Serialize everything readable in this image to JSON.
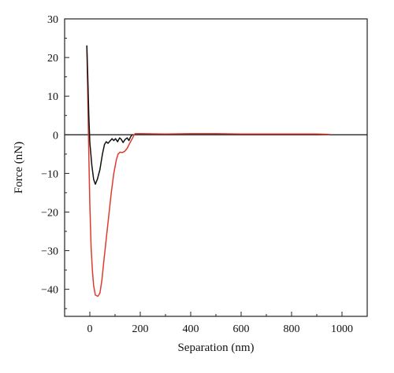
{
  "chart_data": {
    "type": "line",
    "title": "",
    "xlabel": "Separation (nm)",
    "ylabel": "Force (nN)",
    "xlim": [
      -100,
      1100
    ],
    "ylim": [
      -47,
      30
    ],
    "xticks": [
      0,
      200,
      400,
      600,
      800,
      1000
    ],
    "yticks": [
      30,
      20,
      10,
      0,
      -10,
      -20,
      -30,
      -40
    ],
    "xtick_labels": [
      "0",
      "200",
      "400",
      "600",
      "800",
      "1000"
    ],
    "ytick_labels": [
      "30",
      "20",
      "10",
      "0",
      "−10",
      "−20",
      "−30",
      "−40"
    ],
    "grid": false,
    "legend": false,
    "reference_line_y": 0,
    "series": [
      {
        "color": "#e03a2e",
        "points": [
          [
            -12,
            23
          ],
          [
            -8,
            10
          ],
          [
            -4,
            -5
          ],
          [
            0,
            -18
          ],
          [
            5,
            -29
          ],
          [
            10,
            -35
          ],
          [
            15,
            -39
          ],
          [
            22,
            -41.5
          ],
          [
            32,
            -41.8
          ],
          [
            40,
            -41
          ],
          [
            48,
            -37.5
          ],
          [
            55,
            -33
          ],
          [
            65,
            -27
          ],
          [
            75,
            -21
          ],
          [
            85,
            -15
          ],
          [
            95,
            -10
          ],
          [
            105,
            -6.5
          ],
          [
            112,
            -5
          ],
          [
            120,
            -4.5
          ],
          [
            128,
            -4.6
          ],
          [
            138,
            -4.3
          ],
          [
            148,
            -3.5
          ],
          [
            158,
            -2.2
          ],
          [
            168,
            -1
          ],
          [
            176,
            0
          ],
          [
            180,
            0.3
          ],
          [
            200,
            0.3
          ],
          [
            300,
            0.2
          ],
          [
            400,
            0.3
          ],
          [
            500,
            0.3
          ],
          [
            600,
            0.2
          ],
          [
            700,
            0.2
          ],
          [
            800,
            0.2
          ],
          [
            900,
            0.2
          ],
          [
            950,
            0.1
          ]
        ]
      },
      {
        "color": "#111111",
        "points": [
          [
            -12,
            23
          ],
          [
            -8,
            15
          ],
          [
            -4,
            5
          ],
          [
            0,
            -2
          ],
          [
            8,
            -8
          ],
          [
            15,
            -11.5
          ],
          [
            22,
            -12.8
          ],
          [
            30,
            -11.5
          ],
          [
            40,
            -9
          ],
          [
            50,
            -5
          ],
          [
            58,
            -2.5
          ],
          [
            65,
            -1.8
          ],
          [
            72,
            -2.2
          ],
          [
            80,
            -1.6
          ],
          [
            88,
            -1
          ],
          [
            95,
            -1.5
          ],
          [
            102,
            -1
          ],
          [
            110,
            -1.8
          ],
          [
            118,
            -0.8
          ],
          [
            125,
            -1.2
          ],
          [
            132,
            -2
          ],
          [
            140,
            -1.2
          ],
          [
            148,
            -0.8
          ],
          [
            155,
            -1.5
          ],
          [
            162,
            -0.5
          ],
          [
            168,
            0
          ]
        ]
      }
    ]
  }
}
